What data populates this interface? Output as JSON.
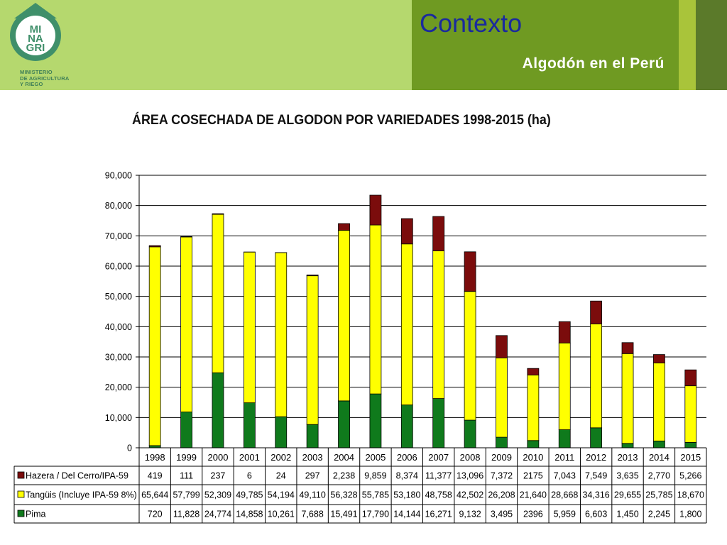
{
  "header": {
    "title": "Contexto",
    "subtitle": "Algodón en el Perú",
    "logo": {
      "lines": [
        "MI",
        "NA",
        "GRI"
      ],
      "org_lines": [
        "MINISTERIO",
        "DE AGRICULTURA",
        "Y RIEGO"
      ]
    }
  },
  "colors": {
    "hazera": "#7b0c0c",
    "tanguis": "#ffff00",
    "pima": "#0f7a1c",
    "header_light": "#b5d86e",
    "header_dark": "#6f9a22",
    "title_blue": "#1a2a9e"
  },
  "chart_data": {
    "type": "bar",
    "stacked": true,
    "title": "ÁREA COSECHADA DE ALGODON POR VARIEDADES 1998-2015 (ha)",
    "categories": [
      "1998",
      "1999",
      "2000",
      "2001",
      "2002",
      "2003",
      "2004",
      "2005",
      "2006",
      "2007",
      "2008",
      "2009",
      "2010",
      "2011",
      "2012",
      "2013",
      "2014",
      "2015"
    ],
    "ylim": [
      0,
      90000
    ],
    "yticks": [
      0,
      10000,
      20000,
      30000,
      40000,
      50000,
      60000,
      70000,
      80000,
      90000
    ],
    "ytick_labels": [
      "0",
      "10,000",
      "20,000",
      "30,000",
      "40,000",
      "50,000",
      "60,000",
      "70,000",
      "80,000",
      "90,000"
    ],
    "grid": true,
    "series": [
      {
        "name": "Pima",
        "color": "#0f7a1c",
        "values": [
          720,
          11828,
          24774,
          14858,
          10261,
          7688,
          15491,
          17790,
          14144,
          16271,
          9132,
          3495,
          2396,
          5959,
          6603,
          1450,
          2245,
          1800
        ],
        "labels": [
          "720",
          "11,828",
          "24,774",
          "14,858",
          "10,261",
          "7,688",
          "15,491",
          "17,790",
          "14,144",
          "16,271",
          "9,132",
          "3,495",
          "2396",
          "5,959",
          "6,603",
          "1,450",
          "2,245",
          "1,800"
        ]
      },
      {
        "name": "Tangüis (Incluye IPA-59 8%)",
        "color": "#ffff00",
        "values": [
          65644,
          57799,
          52309,
          49785,
          54194,
          49110,
          56328,
          55785,
          53180,
          48758,
          42502,
          26208,
          21640,
          28668,
          34316,
          29655,
          25785,
          18670
        ],
        "labels": [
          "65,644",
          "57,799",
          "52,309",
          "49,785",
          "54,194",
          "49,110",
          "56,328",
          "55,785",
          "53,180",
          "48,758",
          "42,502",
          "26,208",
          "21,640",
          "28,668",
          "34,316",
          "29,655",
          "25,785",
          "18,670"
        ]
      },
      {
        "name": "Hazera / Del Cerro/IPA-59",
        "color": "#7b0c0c",
        "values": [
          419,
          111,
          237,
          6,
          24,
          297,
          2238,
          9859,
          8374,
          11377,
          13096,
          7372,
          2175,
          7043,
          7549,
          3635,
          2770,
          5266
        ],
        "labels": [
          "419",
          "111",
          "237",
          "6",
          "24",
          "297",
          "2,238",
          "9,859",
          "8,374",
          "11,377",
          "13,096",
          "7,372",
          "2175",
          "7,043",
          "7,549",
          "3,635",
          "2,770",
          "5,266"
        ]
      }
    ],
    "table_row_order": [
      "Hazera / Del Cerro/IPA-59",
      "Tangüis (Incluye IPA-59 8%)",
      "Pima"
    ]
  }
}
